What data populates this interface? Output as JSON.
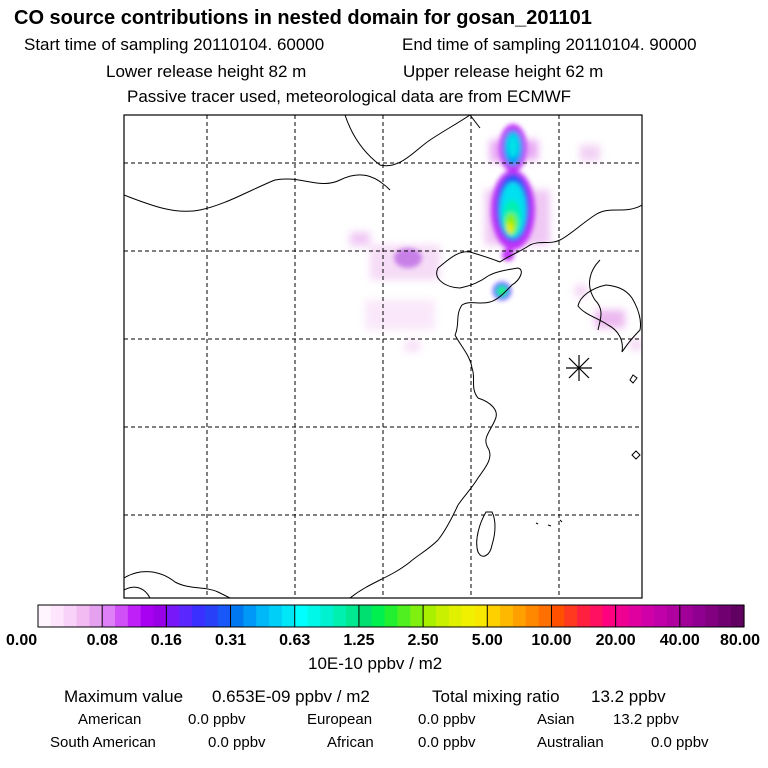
{
  "header": {
    "title": "CO  source contributions in nested domain for gosan_201101",
    "start_time": "Start time of sampling 20110104. 60000",
    "end_time": "End time of sampling 20110104. 90000",
    "lower_release": "Lower release height   82 m",
    "upper_release": "Upper release height   62 m",
    "tracer_note": "Passive tracer used, meteorological data are from ECMWF"
  },
  "colorbar": {
    "unit": "10E-10 ppbv / m2",
    "tick_labels": [
      "0.00",
      "0.08",
      "0.16",
      "0.31",
      "0.63",
      "1.25",
      "2.50",
      "5.00",
      "10.00",
      "20.00",
      "40.00",
      "80.00"
    ],
    "colors": [
      "#fff5ff",
      "#fde5fd",
      "#f8d2f8",
      "#f2bcf2",
      "#e6a0f0",
      "#e080f8",
      "#d050f8",
      "#c020f8",
      "#a800f0",
      "#9800e8",
      "#7818f8",
      "#5a28ff",
      "#3a30ff",
      "#2840f8",
      "#1858f8",
      "#0078f0",
      "#0098f8",
      "#00b8f8",
      "#00d0f8",
      "#00e8f8",
      "#00ffff",
      "#00f8e8",
      "#00f0d0",
      "#00f0b0",
      "#00e890",
      "#00e070",
      "#00f050",
      "#20f030",
      "#50f020",
      "#80f010",
      "#a8f000",
      "#c8f000",
      "#e0f000",
      "#f0f000",
      "#f8e800",
      "#ffd000",
      "#ffb800",
      "#ffa000",
      "#ff8800",
      "#ff7000",
      "#ff5000",
      "#ff3820",
      "#ff2040",
      "#ff1060",
      "#ff0080",
      "#f00090",
      "#e000a0",
      "#d000a8",
      "#c000a8",
      "#b000a0",
      "#a00098",
      "#900090",
      "#800080",
      "#700070",
      "#600060"
    ]
  },
  "stats": {
    "max_label": "Maximum value",
    "max_value": "0.653E-09 ppbv / m2",
    "total_label": "Total mixing ratio",
    "total_value": "13.2 ppbv"
  },
  "regions": [
    {
      "name": "American",
      "value": "0.0 ppbv"
    },
    {
      "name": "European",
      "value": "0.0 ppbv"
    },
    {
      "name": "Asian",
      "value": "13.2 ppbv"
    },
    {
      "name": "South American",
      "value": "0.0 ppbv"
    },
    {
      "name": "African",
      "value": "0.0 ppbv"
    },
    {
      "name": "Australian",
      "value": "0.0 ppbv"
    }
  ]
}
